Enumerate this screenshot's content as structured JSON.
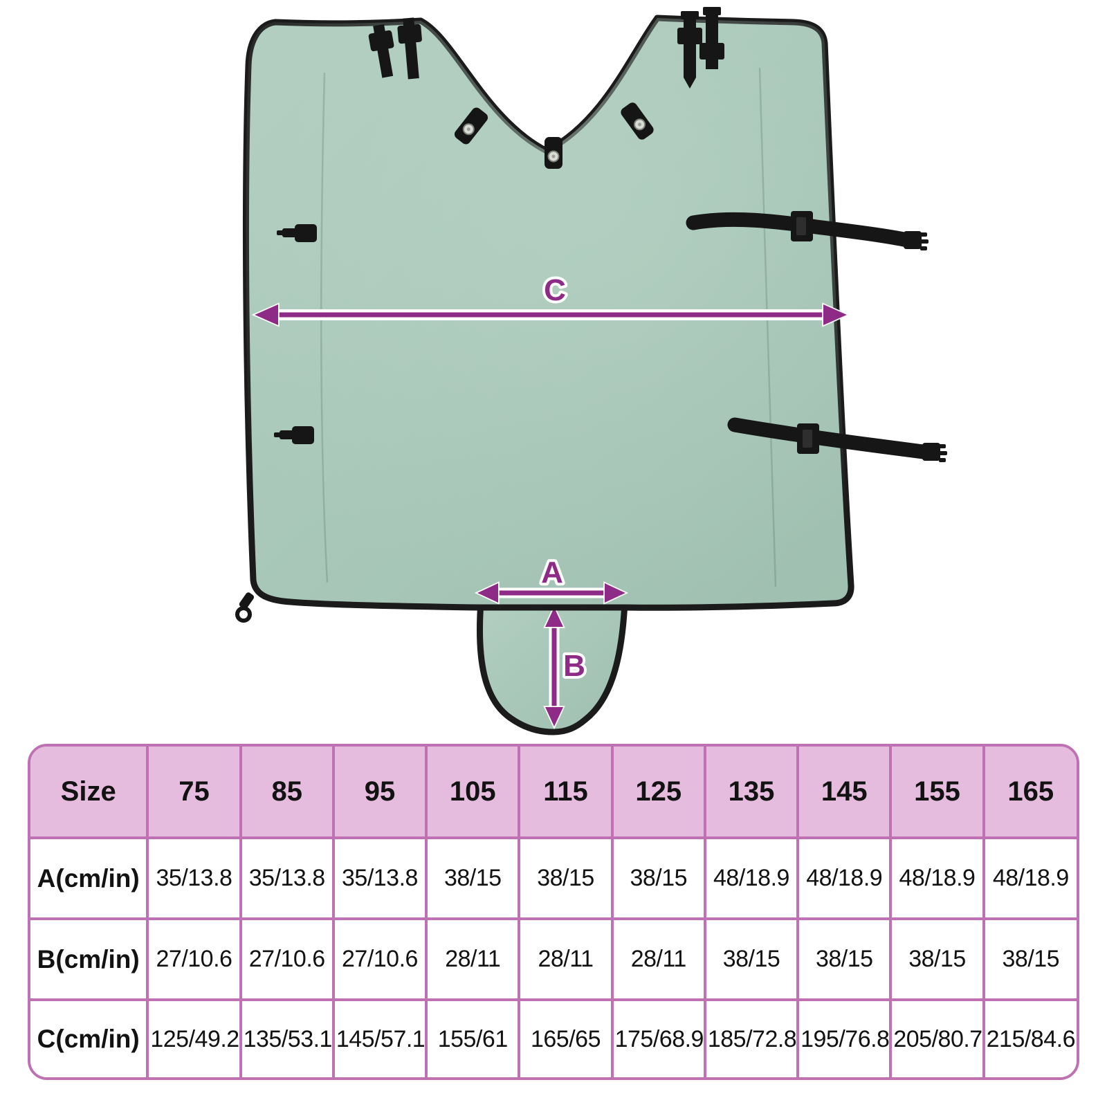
{
  "colors": {
    "fabric": "#A9C8BA",
    "fabric_light": "#B4D0C3",
    "fabric_shade": "#9BBCAD",
    "trim": "#1B1B1B",
    "hardware": "#161616",
    "accent": "#8E2B86",
    "accent_outline": "#FFFFFF",
    "table_border": "#BE72B4",
    "table_header_bg": "#E5BBDE",
    "table_cell_bg": "#FFFFFF",
    "table_text": "#121212",
    "page_bg": "#FFFFFF"
  },
  "diagram": {
    "labels": {
      "width_a": "A",
      "depth_b": "B",
      "width_c": "C"
    }
  },
  "size_table": {
    "header": [
      "Size",
      "75",
      "85",
      "95",
      "105",
      "115",
      "125",
      "135",
      "145",
      "155",
      "165"
    ],
    "rows": [
      {
        "label": "A(cm/in)",
        "values": [
          "35/13.8",
          "35/13.8",
          "35/13.8",
          "38/15",
          "38/15",
          "38/15",
          "48/18.9",
          "48/18.9",
          "48/18.9",
          "48/18.9"
        ]
      },
      {
        "label": "B(cm/in)",
        "values": [
          "27/10.6",
          "27/10.6",
          "27/10.6",
          "28/11",
          "28/11",
          "28/11",
          "38/15",
          "38/15",
          "38/15",
          "38/15"
        ]
      },
      {
        "label": "C(cm/in)",
        "values": [
          "125/49.2",
          "135/53.1",
          "145/57.1",
          "155/61",
          "165/65",
          "175/68.9",
          "185/72.8",
          "195/76.8",
          "205/80.7",
          "215/84.6"
        ]
      }
    ]
  }
}
